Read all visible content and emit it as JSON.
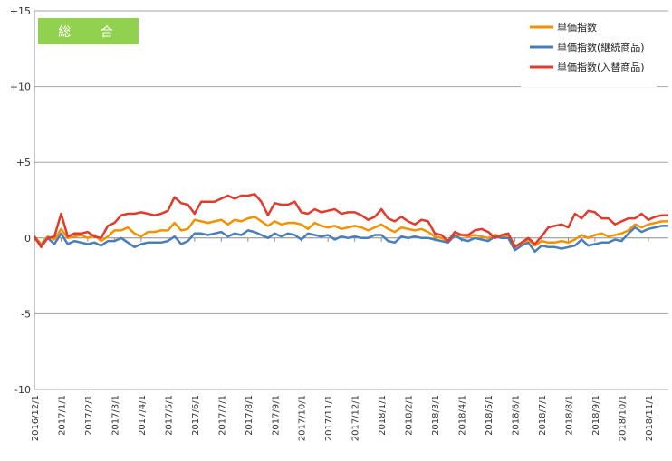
{
  "badge": {
    "label": "総 合"
  },
  "chart_data": {
    "type": "line",
    "ylim": [
      -10,
      15
    ],
    "yticks": [
      {
        "value": 15,
        "label": "+15"
      },
      {
        "value": 10,
        "label": "+10"
      },
      {
        "value": 5,
        "label": "+5"
      },
      {
        "value": 0,
        "label": "0"
      },
      {
        "value": -5,
        "label": "-5"
      },
      {
        "value": -10,
        "label": "-10"
      }
    ],
    "xticks": [
      {
        "index": 0,
        "label": "2016/12/1"
      },
      {
        "index": 4,
        "label": "2017/1/1"
      },
      {
        "index": 8,
        "label": "2017/2/1"
      },
      {
        "index": 12,
        "label": "2017/3/1"
      },
      {
        "index": 16,
        "label": "2017/4/1"
      },
      {
        "index": 20,
        "label": "2017/5/1"
      },
      {
        "index": 24,
        "label": "2017/6/1"
      },
      {
        "index": 28,
        "label": "2017/7/1"
      },
      {
        "index": 32,
        "label": "2017/8/1"
      },
      {
        "index": 36,
        "label": "2017/9/1"
      },
      {
        "index": 40,
        "label": "2017/10/1"
      },
      {
        "index": 44,
        "label": "2017/11/1"
      },
      {
        "index": 48,
        "label": "2017/12/1"
      },
      {
        "index": 52,
        "label": "2018/1/1"
      },
      {
        "index": 56,
        "label": "2018/2/1"
      },
      {
        "index": 60,
        "label": "2018/3/1"
      },
      {
        "index": 64,
        "label": "2018/4/1"
      },
      {
        "index": 68,
        "label": "2018/5/1"
      },
      {
        "index": 72,
        "label": "2018/6/1"
      },
      {
        "index": 76,
        "label": "2018/7/1"
      },
      {
        "index": 80,
        "label": "2018/8/1"
      },
      {
        "index": 84,
        "label": "2018/9/1"
      },
      {
        "index": 88,
        "label": "2018/10/1"
      },
      {
        "index": 92,
        "label": "2018/11/1"
      }
    ],
    "n_points": 96,
    "legend_position": "top-right",
    "grid": "horizontal",
    "series": [
      {
        "name": "単価指数",
        "color": "#f39200",
        "values": [
          0.1,
          -0.4,
          0.1,
          -0.1,
          0.6,
          0.0,
          0.1,
          0.2,
          0.0,
          0.2,
          -0.2,
          0.1,
          0.5,
          0.5,
          0.7,
          0.3,
          0.1,
          0.4,
          0.4,
          0.5,
          0.5,
          1.0,
          0.5,
          0.6,
          1.2,
          1.1,
          1.0,
          1.1,
          1.2,
          0.9,
          1.2,
          1.1,
          1.3,
          1.4,
          1.1,
          0.8,
          1.1,
          0.9,
          1.0,
          1.0,
          0.9,
          0.6,
          1.0,
          0.8,
          0.7,
          0.8,
          0.6,
          0.7,
          0.8,
          0.7,
          0.5,
          0.7,
          0.9,
          0.6,
          0.4,
          0.7,
          0.6,
          0.5,
          0.6,
          0.4,
          0.1,
          0.0,
          -0.2,
          0.1,
          0.2,
          0.1,
          0.2,
          0.1,
          0.0,
          0.2,
          0.1,
          0.2,
          -0.5,
          -0.4,
          -0.1,
          -0.5,
          -0.2,
          -0.3,
          -0.3,
          -0.2,
          -0.3,
          -0.1,
          0.2,
          0.0,
          0.2,
          0.3,
          0.1,
          0.2,
          0.3,
          0.5,
          0.9,
          0.7,
          0.9,
          1.0,
          1.1,
          1.1
        ]
      },
      {
        "name": "単価指数(継続商品)",
        "color": "#4a7ebb",
        "values": [
          0.0,
          -0.5,
          0.0,
          -0.4,
          0.3,
          -0.4,
          -0.2,
          -0.3,
          -0.4,
          -0.3,
          -0.5,
          -0.2,
          -0.2,
          0.0,
          -0.3,
          -0.6,
          -0.4,
          -0.3,
          -0.3,
          -0.3,
          -0.2,
          0.1,
          -0.4,
          -0.2,
          0.3,
          0.3,
          0.2,
          0.3,
          0.4,
          0.1,
          0.3,
          0.2,
          0.5,
          0.4,
          0.2,
          0.0,
          0.3,
          0.1,
          0.3,
          0.2,
          -0.1,
          0.3,
          0.2,
          0.1,
          0.2,
          -0.1,
          0.1,
          0.0,
          0.1,
          0.0,
          0.0,
          0.2,
          0.2,
          -0.2,
          -0.3,
          0.1,
          0.0,
          0.1,
          0.0,
          0.0,
          -0.1,
          -0.2,
          -0.3,
          0.2,
          -0.1,
          -0.2,
          0.0,
          -0.1,
          -0.2,
          0.1,
          0.0,
          0.0,
          -0.8,
          -0.5,
          -0.3,
          -0.9,
          -0.5,
          -0.6,
          -0.6,
          -0.7,
          -0.6,
          -0.5,
          -0.1,
          -0.5,
          -0.4,
          -0.3,
          -0.3,
          -0.1,
          -0.2,
          0.3,
          0.7,
          0.4,
          0.6,
          0.7,
          0.8,
          0.8
        ]
      },
      {
        "name": "単価指数(入替商品)",
        "color": "#e03b2c",
        "values": [
          0.1,
          -0.6,
          0.0,
          0.1,
          1.6,
          0.1,
          0.3,
          0.3,
          0.4,
          0.1,
          0.0,
          0.8,
          1.0,
          1.5,
          1.6,
          1.6,
          1.7,
          1.6,
          1.5,
          1.6,
          1.8,
          2.7,
          2.3,
          2.2,
          1.6,
          2.4,
          2.4,
          2.4,
          2.6,
          2.8,
          2.6,
          2.8,
          2.8,
          2.9,
          2.4,
          1.5,
          2.3,
          2.2,
          2.2,
          2.4,
          1.7,
          1.6,
          1.9,
          1.7,
          1.8,
          1.9,
          1.6,
          1.7,
          1.7,
          1.5,
          1.2,
          1.4,
          1.9,
          1.3,
          1.1,
          1.4,
          1.1,
          0.9,
          1.2,
          1.1,
          0.3,
          0.2,
          -0.2,
          0.4,
          0.2,
          0.2,
          0.5,
          0.6,
          0.4,
          0.0,
          0.2,
          0.3,
          -0.6,
          -0.3,
          0.0,
          -0.4,
          0.1,
          0.7,
          0.8,
          0.9,
          0.7,
          1.6,
          1.3,
          1.8,
          1.7,
          1.3,
          1.3,
          0.9,
          1.1,
          1.3,
          1.3,
          1.6,
          1.2,
          1.4,
          1.5,
          1.5
        ]
      }
    ]
  }
}
